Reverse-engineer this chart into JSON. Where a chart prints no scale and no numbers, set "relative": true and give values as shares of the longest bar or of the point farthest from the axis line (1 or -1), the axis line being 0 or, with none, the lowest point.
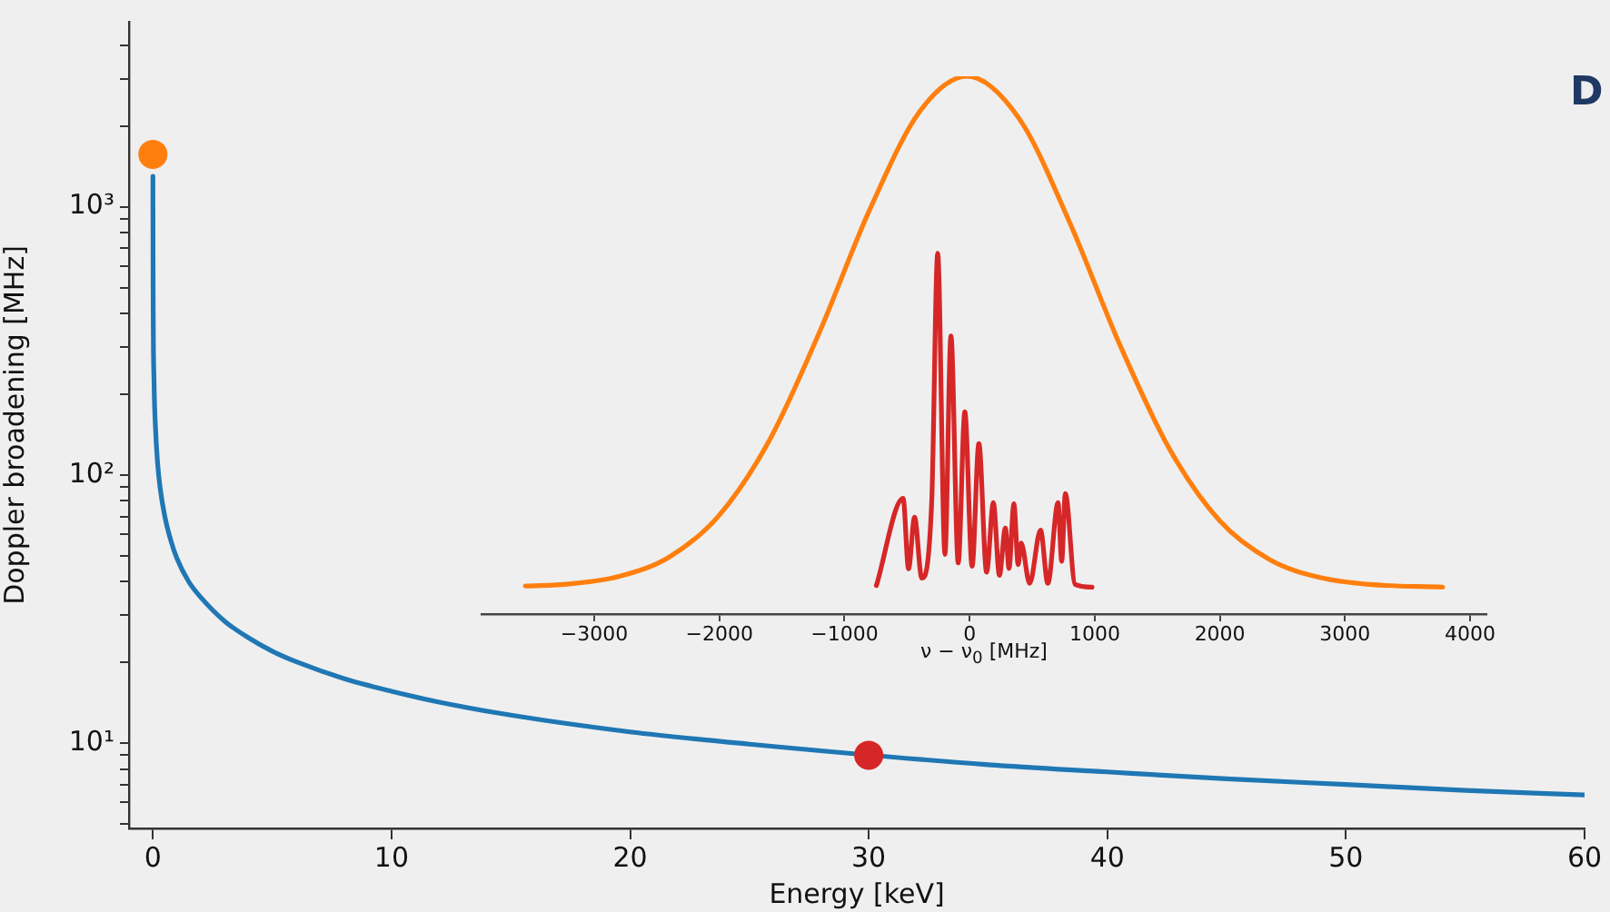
{
  "chart_data": [
    {
      "type": "line",
      "xlabel": "Energy [keV]",
      "ylabel": "Doppler broadening [MHz]",
      "xlim": [
        -1,
        60
      ],
      "xticks": [
        0,
        10,
        20,
        30,
        40,
        50,
        60
      ],
      "ylim": [
        4.8,
        4900
      ],
      "log": "y",
      "grid": false,
      "legend": false,
      "yticks": [
        {
          "value": 5,
          "label": null
        },
        {
          "value": 6,
          "label": null
        },
        {
          "value": 7,
          "label": null
        },
        {
          "value": 8,
          "label": null
        },
        {
          "value": 9,
          "label": null
        },
        {
          "value": 10,
          "label": "10¹"
        },
        {
          "value": 20,
          "label": null
        },
        {
          "value": 30,
          "label": null
        },
        {
          "value": 40,
          "label": null
        },
        {
          "value": 50,
          "label": null
        },
        {
          "value": 60,
          "label": null
        },
        {
          "value": 70,
          "label": null
        },
        {
          "value": 80,
          "label": null
        },
        {
          "value": 90,
          "label": null
        },
        {
          "value": 100,
          "label": "10²"
        },
        {
          "value": 200,
          "label": null
        },
        {
          "value": 300,
          "label": null
        },
        {
          "value": 400,
          "label": null
        },
        {
          "value": 500,
          "label": null
        },
        {
          "value": 600,
          "label": null
        },
        {
          "value": 700,
          "label": null
        },
        {
          "value": 800,
          "label": null
        },
        {
          "value": 900,
          "label": null
        },
        {
          "value": 1000,
          "label": "10³"
        },
        {
          "value": 2000,
          "label": null
        },
        {
          "value": 3000,
          "label": null
        },
        {
          "value": 4000,
          "label": null
        }
      ],
      "annotations": [
        "D"
      ],
      "series": [
        {
          "type": "line",
          "color": "#1f77b4",
          "marker": "none",
          "x": [
            0.0015,
            0.002,
            0.01,
            0.05,
            0.1,
            0.2,
            0.3,
            0.5,
            0.75,
            1,
            1.5,
            2,
            3,
            4,
            5,
            6,
            8,
            10,
            12,
            15,
            20,
            25,
            35,
            40,
            45,
            50,
            55,
            60
          ],
          "values": [
            1300,
            1100,
            490,
            220,
            156,
            110,
            90,
            70,
            57,
            49,
            40,
            35,
            28.5,
            24.7,
            22,
            20.1,
            17.4,
            15.6,
            14.2,
            12.7,
            11,
            9.9,
            8.3,
            7.8,
            7.35,
            7,
            6.65,
            6.4
          ]
        },
        {
          "type": "scatter",
          "color": "#ff7f0e",
          "marker": "circle",
          "x": [
            0
          ],
          "values": [
            1570
          ]
        },
        {
          "type": "scatter",
          "color": "#d62728",
          "marker": "circle",
          "x": [
            30
          ],
          "values": [
            9
          ]
        }
      ]
    },
    {
      "type": "line",
      "xlabel": "ν − ν$_{0}$ [MHz]",
      "xlim": [
        -3900,
        4130
      ],
      "xticks": [
        -3000,
        -2000,
        -1000,
        0,
        1000,
        2000,
        3000,
        4000
      ],
      "relative": true,
      "grid": false,
      "legend": false,
      "series": [
        {
          "color": "#ff7f0e",
          "marker": "none",
          "x": [
            -3550,
            -3200,
            -2800,
            -2400,
            -2000,
            -1600,
            -1200,
            -800,
            -400,
            -20,
            400,
            800,
            1200,
            1600,
            2000,
            2400,
            2800,
            3200,
            3780
          ],
          "values": [
            0.052,
            0.056,
            0.07,
            0.106,
            0.184,
            0.323,
            0.524,
            0.751,
            0.934,
            1,
            0.92,
            0.728,
            0.501,
            0.306,
            0.173,
            0.101,
            0.068,
            0.055,
            0.05
          ]
        },
        {
          "color": "#d62728",
          "marker": "none",
          "x": [
            -745,
            -531,
            -488,
            -440,
            -382,
            -303,
            -255,
            -197,
            -149,
            -91,
            -38,
            20,
            74,
            136,
            190,
            238,
            286,
            315,
            354,
            388,
            412,
            480,
            567,
            625,
            707,
            736,
            765,
            843,
            978
          ],
          "values": [
            0.053,
            0.215,
            0.084,
            0.18,
            0.067,
            0.207,
            0.671,
            0.111,
            0.517,
            0.095,
            0.376,
            0.089,
            0.317,
            0.078,
            0.207,
            0.072,
            0.16,
            0.085,
            0.205,
            0.092,
            0.132,
            0.057,
            0.156,
            0.057,
            0.207,
            0.098,
            0.224,
            0.055,
            0.05
          ]
        }
      ]
    }
  ]
}
